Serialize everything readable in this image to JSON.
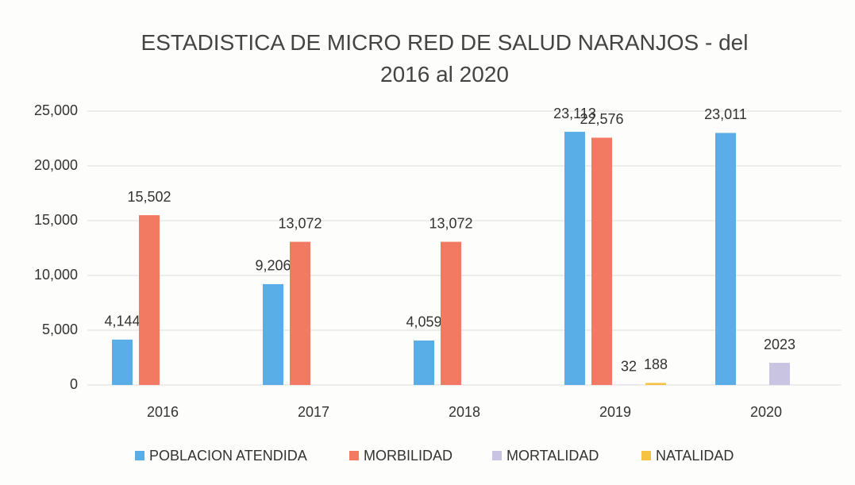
{
  "chart_data": {
    "type": "bar",
    "title": "ESTADISTICA DE MICRO RED DE SALUD NARANJOS - del 2016 al 2020",
    "categories": [
      "2016",
      "2017",
      "2018",
      "2019",
      "2020"
    ],
    "series": [
      {
        "name": "POBLACION ATENDIDA",
        "color": "#5aaee8",
        "values": [
          4144,
          9206,
          4059,
          23113,
          23011
        ],
        "value_labels": [
          "4,144",
          "9,206",
          "4,059",
          "23,113",
          "23,011"
        ]
      },
      {
        "name": "MORBILIDAD",
        "color": "#f27a62",
        "values": [
          15502,
          13072,
          13072,
          22576,
          null
        ],
        "value_labels": [
          "15,502",
          "13,072",
          "13,072",
          "22,576",
          null
        ]
      },
      {
        "name": "MORTALIDAD",
        "color": "#c9c4e2",
        "values": [
          null,
          null,
          null,
          32,
          2023
        ]
      },
      {
        "name": "NATALIDAD",
        "color": "#f5c242",
        "values": [
          null,
          null,
          null,
          188,
          null
        ]
      }
    ],
    "ylim": [
      0,
      25000
    ],
    "yticks": [
      0,
      {
        "value": 5000,
        "label": "5,000"
      },
      {
        "value": 10000,
        "label": "10,000"
      },
      {
        "value": 15000,
        "label": "15,000"
      },
      {
        "value": 20000,
        "label": "20,000"
      },
      {
        "value": 25000,
        "label": "25,000"
      }
    ],
    "grid": true,
    "legend": "bottom"
  }
}
